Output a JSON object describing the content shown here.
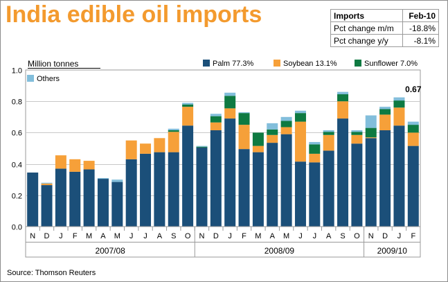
{
  "title": "India edible oil imports",
  "info_table": {
    "header": {
      "label": "Imports",
      "value": "Feb-10"
    },
    "rows": [
      {
        "label": "Pct change m/m",
        "value": "-18.8%"
      },
      {
        "label": "Pct change y/y",
        "value": "-8.1%"
      }
    ]
  },
  "source": "Source: Thomson Reuters",
  "colors": {
    "palm": "#1b4f79",
    "soybean": "#f6a039",
    "sunflower": "#0e7a42",
    "others": "#82bedb",
    "title": "#f39a2e"
  },
  "chart_data": {
    "type": "bar",
    "stacked": true,
    "ylabel": "Million tonnes",
    "ylim": [
      0,
      1.0
    ],
    "yticks": [
      "0.0",
      "0.2",
      "0.4",
      "0.6",
      "0.8",
      "1.0"
    ],
    "grid": true,
    "legend_position": "top",
    "categories": [
      "N",
      "D",
      "J",
      "F",
      "M",
      "A",
      "M",
      "J",
      "J",
      "A",
      "S",
      "O",
      "N",
      "D",
      "J",
      "F",
      "M",
      "A",
      "M",
      "J",
      "J",
      "A",
      "S",
      "O",
      "N",
      "D",
      "J",
      "F"
    ],
    "year_groups": [
      {
        "label": "2007/08",
        "start": 0,
        "end": 11
      },
      {
        "label": "2008/09",
        "start": 12,
        "end": 23
      },
      {
        "label": "2009/10",
        "start": 24,
        "end": 27
      }
    ],
    "series": [
      {
        "name": "Palm 77.3%",
        "key": "palm",
        "values": [
          0.345,
          0.265,
          0.37,
          0.35,
          0.365,
          0.305,
          0.285,
          0.43,
          0.465,
          0.475,
          0.475,
          0.645,
          0.505,
          0.615,
          0.69,
          0.495,
          0.475,
          0.535,
          0.59,
          0.415,
          0.41,
          0.485,
          0.69,
          0.53,
          0.565,
          0.615,
          0.645,
          0.515
        ]
      },
      {
        "name": "Soybean 13.1%",
        "key": "soybean",
        "values": [
          0,
          0.01,
          0.085,
          0.08,
          0.055,
          0,
          0,
          0.12,
          0.065,
          0.09,
          0.13,
          0.12,
          0,
          0.05,
          0.065,
          0.155,
          0.04,
          0.05,
          0.045,
          0.255,
          0.055,
          0.1,
          0.11,
          0.055,
          0.005,
          0.1,
          0.115,
          0.085
        ]
      },
      {
        "name": "Sunflower 7.0%",
        "key": "sunflower",
        "values": [
          0,
          0,
          0,
          0,
          0,
          0,
          0,
          0,
          0,
          0,
          0.01,
          0.015,
          0.005,
          0.04,
          0.08,
          0.075,
          0.085,
          0.035,
          0.04,
          0.055,
          0.06,
          0.02,
          0.045,
          0.02,
          0.06,
          0.035,
          0.045,
          0.05
        ]
      },
      {
        "name": "Others",
        "key": "others",
        "values": [
          0,
          0.005,
          0,
          0,
          0,
          0.005,
          0.015,
          0,
          0,
          0,
          0.01,
          0.01,
          0.005,
          0.015,
          0.02,
          0.005,
          0,
          0.04,
          0.025,
          0.015,
          0.015,
          0.01,
          0.015,
          0.01,
          0.08,
          0.015,
          0.02,
          0.02
        ]
      }
    ],
    "annotation": {
      "index": 27,
      "text": "0.67"
    }
  }
}
